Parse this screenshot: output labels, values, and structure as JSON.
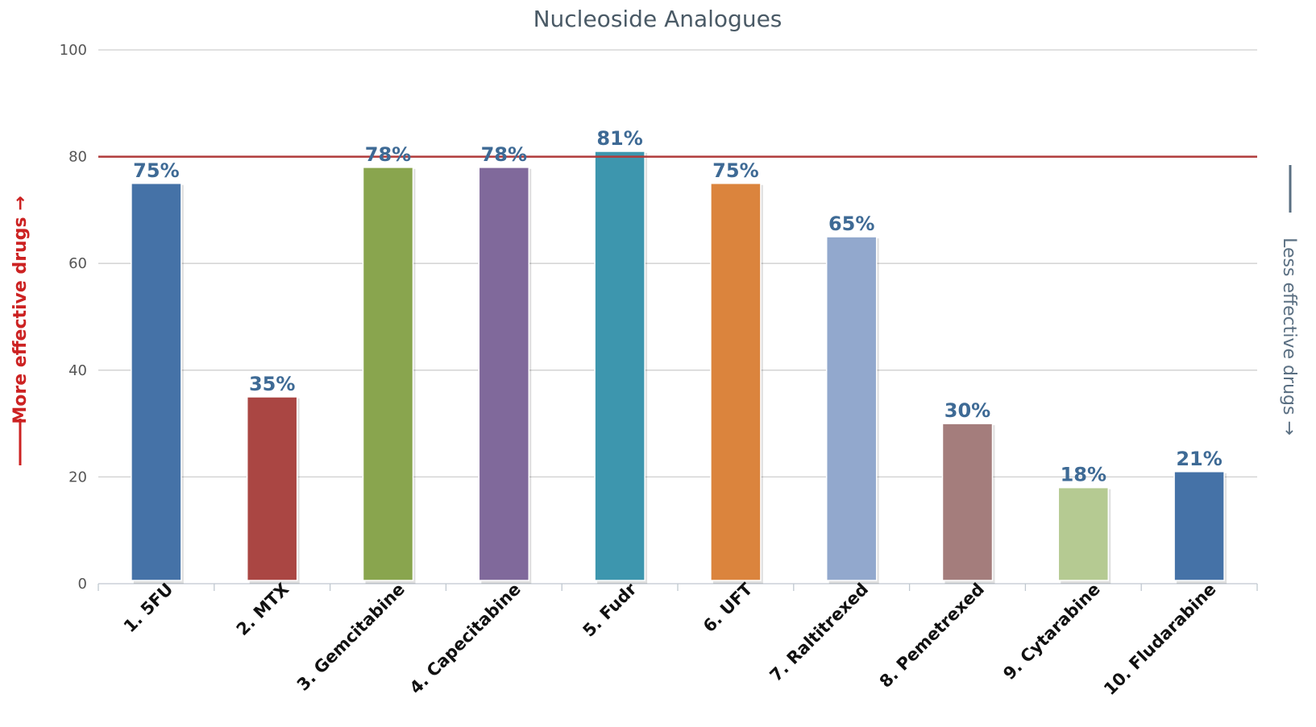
{
  "chart_data": {
    "type": "bar",
    "title": "Nucleoside Analogues",
    "categories": [
      "1. 5FU",
      "2. MTX",
      "3. Gemcitabine",
      "4. Capecitabine",
      "5. Fudr",
      "6. UFT",
      "7. Raltitrexed",
      "8. Pemetrexed",
      "9. Cytarabine",
      "10. Fludarabine"
    ],
    "values": [
      75,
      35,
      78,
      78,
      81,
      75,
      65,
      30,
      18,
      21
    ],
    "data_labels": [
      "75%",
      "35%",
      "78%",
      "78%",
      "81%",
      "75%",
      "65%",
      "30%",
      "18%",
      "21%"
    ],
    "bar_colors": [
      "#4572a7",
      "#aa4643",
      "#89a54e",
      "#80699b",
      "#3d96ae",
      "#db843d",
      "#92a8cd",
      "#a47d7c",
      "#b5ca92",
      "#4572a7"
    ],
    "ylim": [
      0,
      100
    ],
    "yticks": [
      0,
      20,
      40,
      60,
      80,
      100
    ],
    "ytick_labels": [
      "0",
      "20",
      "40",
      "60",
      "80",
      "100"
    ],
    "threshold_line": {
      "value": 80,
      "color": "#b03a3a"
    },
    "left_axis_title": "More effective drugs →",
    "left_axis_title_color": "#cc2222",
    "right_axis_title": "Less effective drugs →",
    "right_axis_title_color": "#5a6f82",
    "grid": true,
    "legend": "none"
  }
}
